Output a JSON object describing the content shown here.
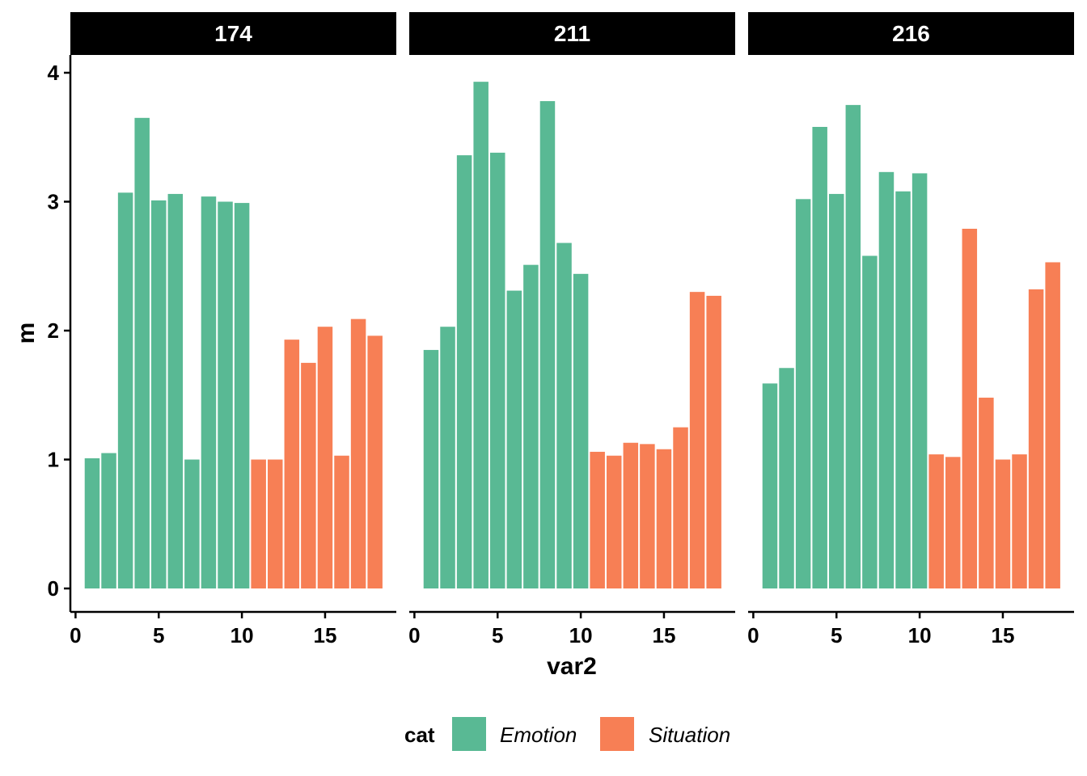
{
  "chart_data": {
    "type": "bar",
    "facet_var": "",
    "xlabel": "var2",
    "ylabel": "m",
    "xlim": [
      0,
      18.5
    ],
    "ylim": [
      0,
      4
    ],
    "x_ticks": [
      0,
      5,
      10,
      15
    ],
    "y_ticks": [
      0,
      1,
      2,
      3,
      4
    ],
    "grid": false,
    "legend": {
      "title": "cat",
      "position": "bottom",
      "entries": [
        {
          "name": "Emotion",
          "color": "#59B994"
        },
        {
          "name": "Situation",
          "color": "#F77F55"
        }
      ]
    },
    "category_by_x": {
      "Emotion": [
        1,
        2,
        3,
        4,
        5,
        6,
        7,
        8,
        9,
        10
      ],
      "Situation": [
        11,
        12,
        13,
        14,
        15,
        16,
        17,
        18
      ]
    },
    "facets": [
      {
        "label": "174",
        "x": [
          1,
          2,
          3,
          4,
          5,
          6,
          7,
          8,
          9,
          10,
          11,
          12,
          13,
          14,
          15,
          16,
          17,
          18
        ],
        "values": [
          1.01,
          1.05,
          3.07,
          3.65,
          3.01,
          3.06,
          1.0,
          3.04,
          3.0,
          2.99,
          1.0,
          1.0,
          1.93,
          1.75,
          2.03,
          1.03,
          2.09,
          1.96
        ]
      },
      {
        "label": "211",
        "x": [
          1,
          2,
          3,
          4,
          5,
          6,
          7,
          8,
          9,
          10,
          11,
          12,
          13,
          14,
          15,
          16,
          17,
          18
        ],
        "values": [
          1.85,
          2.03,
          3.36,
          3.93,
          3.38,
          2.31,
          2.51,
          3.78,
          2.68,
          2.44,
          1.06,
          1.03,
          1.13,
          1.12,
          1.08,
          1.25,
          2.3,
          2.27
        ]
      },
      {
        "label": "216",
        "x": [
          1,
          2,
          3,
          4,
          5,
          6,
          7,
          8,
          9,
          10,
          11,
          12,
          13,
          14,
          15,
          16,
          17,
          18
        ],
        "values": [
          1.59,
          1.71,
          3.02,
          3.58,
          3.06,
          3.75,
          2.58,
          3.23,
          3.08,
          3.22,
          1.04,
          1.02,
          2.79,
          1.48,
          1.0,
          1.04,
          2.32,
          2.53
        ]
      }
    ]
  }
}
